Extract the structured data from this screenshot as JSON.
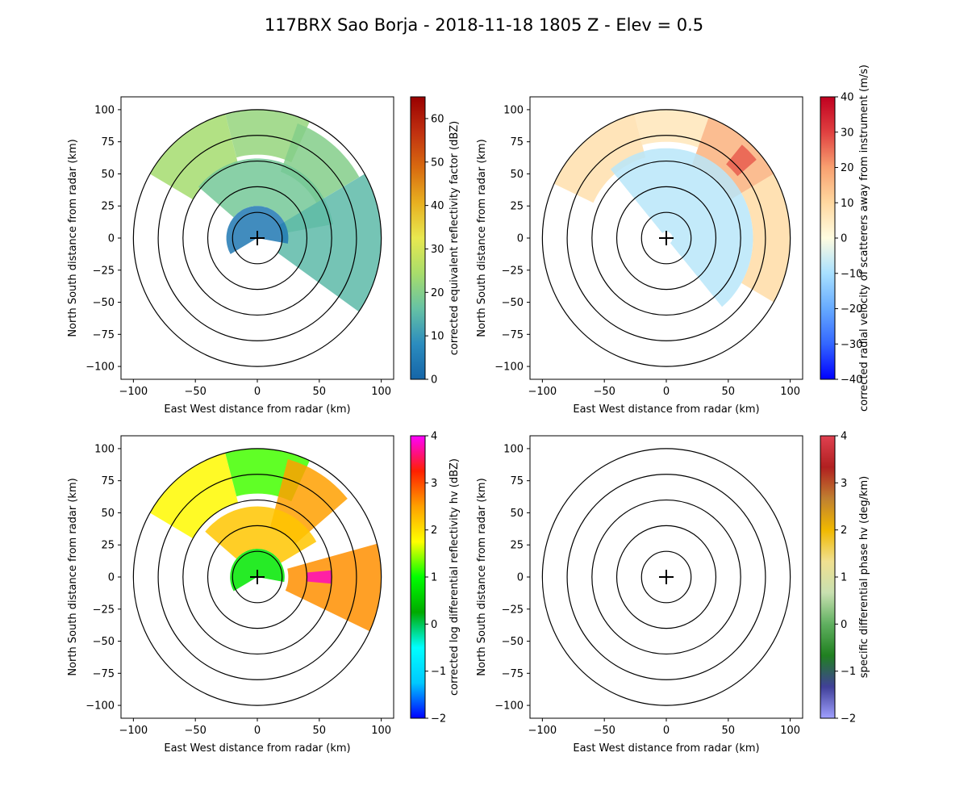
{
  "figure": {
    "title": "117BRX Sao Borja - 2018-11-18 1805 Z -  Elev = 0.5"
  },
  "chart_data": [
    {
      "type": "heatmap",
      "panel": "top-left",
      "field": "corrected equivalent reflectivity factor",
      "xlabel": "East West distance from radar (km)",
      "ylabel": "North South distance from radar (km)",
      "xlim": [
        -110,
        110
      ],
      "ylim": [
        -110,
        110
      ],
      "xticks": [
        -100,
        -50,
        0,
        50,
        100
      ],
      "yticks": [
        -100,
        -75,
        -50,
        -25,
        0,
        25,
        50,
        75,
        100
      ],
      "range_rings_km": [
        20,
        40,
        60,
        80,
        100
      ],
      "colorbar": {
        "label": "corrected equivalent reflectivity factor (dBZ)",
        "min": 0,
        "max": 65,
        "ticks": [
          0,
          10,
          20,
          30,
          40,
          50,
          60
        ],
        "stops": [
          "#1565a8",
          "#2b8cbe",
          "#66c2a4",
          "#a8dd6b",
          "#e8e850",
          "#e8b020",
          "#d86a10",
          "#c03010",
          "#990000"
        ]
      },
      "echoes": [
        {
          "az": [
            300,
            345
          ],
          "r": [
            60,
            100
          ],
          "value": 24
        },
        {
          "az": [
            345,
            25
          ],
          "r": [
            65,
            100
          ],
          "value": 22
        },
        {
          "az": [
            20,
            60
          ],
          "r": [
            55,
            95
          ],
          "value": 20
        },
        {
          "az": [
            310,
            80
          ],
          "r": [
            25,
            62
          ],
          "value": 18
        },
        {
          "az": [
            60,
            125
          ],
          "r": [
            20,
            100
          ],
          "value": 15
        },
        {
          "az": [
            240,
            100
          ],
          "r": [
            0,
            25
          ],
          "value": 4
        }
      ]
    },
    {
      "type": "heatmap",
      "panel": "top-right",
      "field": "corrected radial velocity of scatterers away from instrument",
      "xlabel": "East West distance from radar (km)",
      "ylabel": "North South distance from radar (km)",
      "xlim": [
        -110,
        110
      ],
      "ylim": [
        -110,
        110
      ],
      "xticks": [
        -100,
        -50,
        0,
        50,
        100
      ],
      "yticks": [
        -100,
        -75,
        -50,
        -25,
        0,
        25,
        50,
        75,
        100
      ],
      "range_rings_km": [
        20,
        40,
        60,
        80,
        100
      ],
      "colorbar": {
        "label": "corrected radial velocity of scatterers away from instrument (m/s)",
        "min": -40,
        "max": 40,
        "ticks": [
          -40,
          -30,
          -20,
          -10,
          0,
          10,
          20,
          30,
          40
        ],
        "stops": [
          "#0000ff",
          "#3366ff",
          "#66aaff",
          "#a8e0ff",
          "#fffce0",
          "#ffd8a0",
          "#f8a070",
          "#e04040",
          "#c00020"
        ]
      },
      "echoes": [
        {
          "az": [
            295,
            345
          ],
          "r": [
            65,
            100
          ],
          "value": 8
        },
        {
          "az": [
            345,
            20
          ],
          "r": [
            75,
            100
          ],
          "value": 6
        },
        {
          "az": [
            20,
            60
          ],
          "r": [
            60,
            100
          ],
          "value": 17
        },
        {
          "az": [
            40,
            50
          ],
          "r": [
            75,
            95
          ],
          "value": 27
        },
        {
          "az": [
            320,
            140
          ],
          "r": [
            5,
            70
          ],
          "value": -8
        },
        {
          "az": [
            60,
            120
          ],
          "r": [
            70,
            100
          ],
          "value": 9
        }
      ]
    },
    {
      "type": "heatmap",
      "panel": "bottom-left",
      "field": "corrected log differential reflectivity hv",
      "xlabel": "East West distance from radar (km)",
      "ylabel": "North South distance from radar (km)",
      "xlim": [
        -110,
        110
      ],
      "ylim": [
        -110,
        110
      ],
      "xticks": [
        -100,
        -50,
        0,
        50,
        100
      ],
      "yticks": [
        -100,
        -75,
        -50,
        -25,
        0,
        25,
        50,
        75,
        100
      ],
      "range_rings_km": [
        20,
        40,
        60,
        80,
        100
      ],
      "colorbar": {
        "label": "corrected log differential reflectivity hv (dBZ)",
        "min": -2,
        "max": 4,
        "ticks": [
          -2,
          -1,
          0,
          1,
          2,
          3,
          4
        ],
        "stops": [
          "#0000ff",
          "#00c8ff",
          "#00ffff",
          "#00aa00",
          "#00ff00",
          "#ffff00",
          "#ffa000",
          "#ff2000",
          "#ff00ff"
        ]
      },
      "echoes": [
        {
          "az": [
            300,
            345
          ],
          "r": [
            60,
            100
          ],
          "value": 1.8
        },
        {
          "az": [
            345,
            25
          ],
          "r": [
            65,
            100
          ],
          "value": 1.2
        },
        {
          "az": [
            15,
            50
          ],
          "r": [
            40,
            95
          ],
          "value": 2.5
        },
        {
          "az": [
            310,
            60
          ],
          "r": [
            22,
            55
          ],
          "value": 2.2
        },
        {
          "az": [
            75,
            115
          ],
          "r": [
            25,
            100
          ],
          "value": 2.6
        },
        {
          "az": [
            85,
            95
          ],
          "r": [
            40,
            60
          ],
          "value": 3.8
        },
        {
          "az": [
            240,
            100
          ],
          "r": [
            0,
            22
          ],
          "value": 0.8
        }
      ]
    },
    {
      "type": "heatmap",
      "panel": "bottom-right",
      "field": "specific differential phase hv",
      "xlabel": "East West distance from radar (km)",
      "ylabel": "North South distance from radar (km)",
      "xlim": [
        -110,
        110
      ],
      "ylim": [
        -110,
        110
      ],
      "xticks": [
        -100,
        -50,
        0,
        50,
        100
      ],
      "yticks": [
        -100,
        -75,
        -50,
        -25,
        0,
        25,
        50,
        75,
        100
      ],
      "range_rings_km": [
        20,
        40,
        60,
        80,
        100
      ],
      "colorbar": {
        "label": "specific differential phase hv (deg/km)",
        "min": -2,
        "max": 4,
        "ticks": [
          -2,
          -1,
          0,
          1,
          2,
          3,
          4
        ],
        "stops": [
          "#a0a0ff",
          "#404098",
          "#208020",
          "#60b060",
          "#c8e0b0",
          "#f0e090",
          "#f0b800",
          "#c08030",
          "#b02020",
          "#e04050"
        ]
      },
      "echoes": []
    }
  ]
}
